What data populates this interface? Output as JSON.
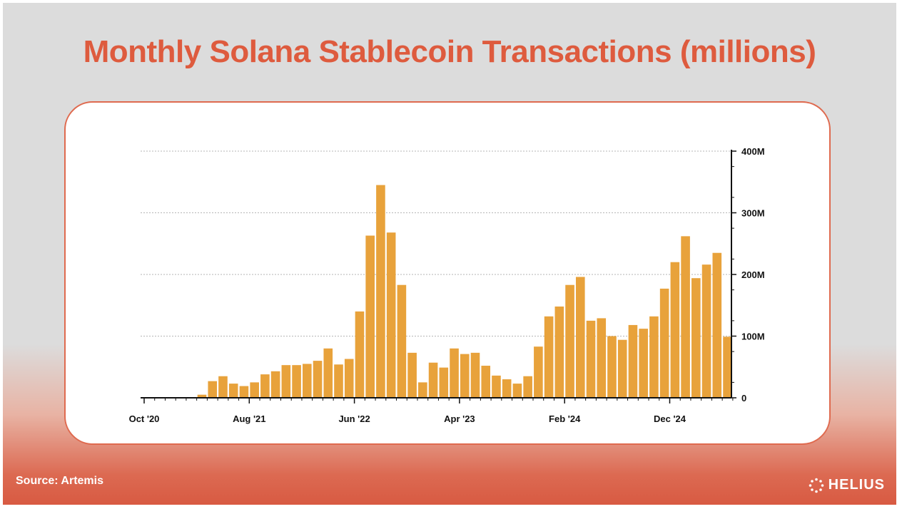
{
  "title": "Monthly Solana Stablecoin Transactions (millions)",
  "source": "Source: Artemis",
  "brand": {
    "name": "HELIUS",
    "icon": "helius-logo-icon"
  },
  "colors": {
    "title": "#de5b3e",
    "bar": "#e8a23b",
    "card_border": "#df6a4f"
  },
  "chart_data": {
    "type": "bar",
    "x_tick_labels": [
      "Oct '20",
      "Aug '21",
      "Jun '22",
      "Apr '23",
      "Feb '24",
      "Dec '24"
    ],
    "y_tick_labels": [
      "0",
      "100M",
      "200M",
      "300M",
      "400M"
    ],
    "y_axis_position": "right",
    "ylim": [
      0,
      400
    ],
    "grid": "horizontal dashed",
    "categories": [
      "Oct 2020",
      "Nov 2020",
      "Dec 2020",
      "Jan 2021",
      "Feb 2021",
      "Mar 2021",
      "Apr 2021",
      "May 2021",
      "Jun 2021",
      "Jul 2021",
      "Aug 2021",
      "Sep 2021",
      "Oct 2021",
      "Nov 2021",
      "Dec 2021",
      "Jan 2022",
      "Feb 2022",
      "Mar 2022",
      "Apr 2022",
      "May 2022",
      "Jun 2022",
      "Jul 2022",
      "Aug 2022",
      "Sep 2022",
      "Oct 2022",
      "Nov 2022",
      "Dec 2022",
      "Jan 2023",
      "Feb 2023",
      "Mar 2023",
      "Apr 2023",
      "May 2023",
      "Jun 2023",
      "Jul 2023",
      "Aug 2023",
      "Sep 2023",
      "Oct 2023",
      "Nov 2023",
      "Dec 2023",
      "Jan 2024",
      "Feb 2024",
      "Mar 2024",
      "Apr 2024",
      "May 2024",
      "Jun 2024",
      "Jul 2024",
      "Aug 2024",
      "Sep 2024",
      "Oct 2024",
      "Nov 2024",
      "Dec 2024",
      "Jan 2025",
      "Feb 2025",
      "Mar 2025",
      "Apr 2025",
      "May 2025",
      "Jun 2025"
    ],
    "values": [
      0,
      0,
      0,
      0,
      0,
      5,
      27,
      35,
      23,
      19,
      25,
      38,
      43,
      53,
      53,
      55,
      60,
      80,
      54,
      63,
      140,
      263,
      345,
      268,
      183,
      73,
      25,
      57,
      49,
      80,
      71,
      73,
      52,
      36,
      30,
      23,
      35,
      83,
      132,
      148,
      183,
      196,
      125,
      129,
      100,
      94,
      118,
      112,
      132,
      177,
      220,
      262,
      194,
      216,
      235,
      99,
      0
    ]
  }
}
